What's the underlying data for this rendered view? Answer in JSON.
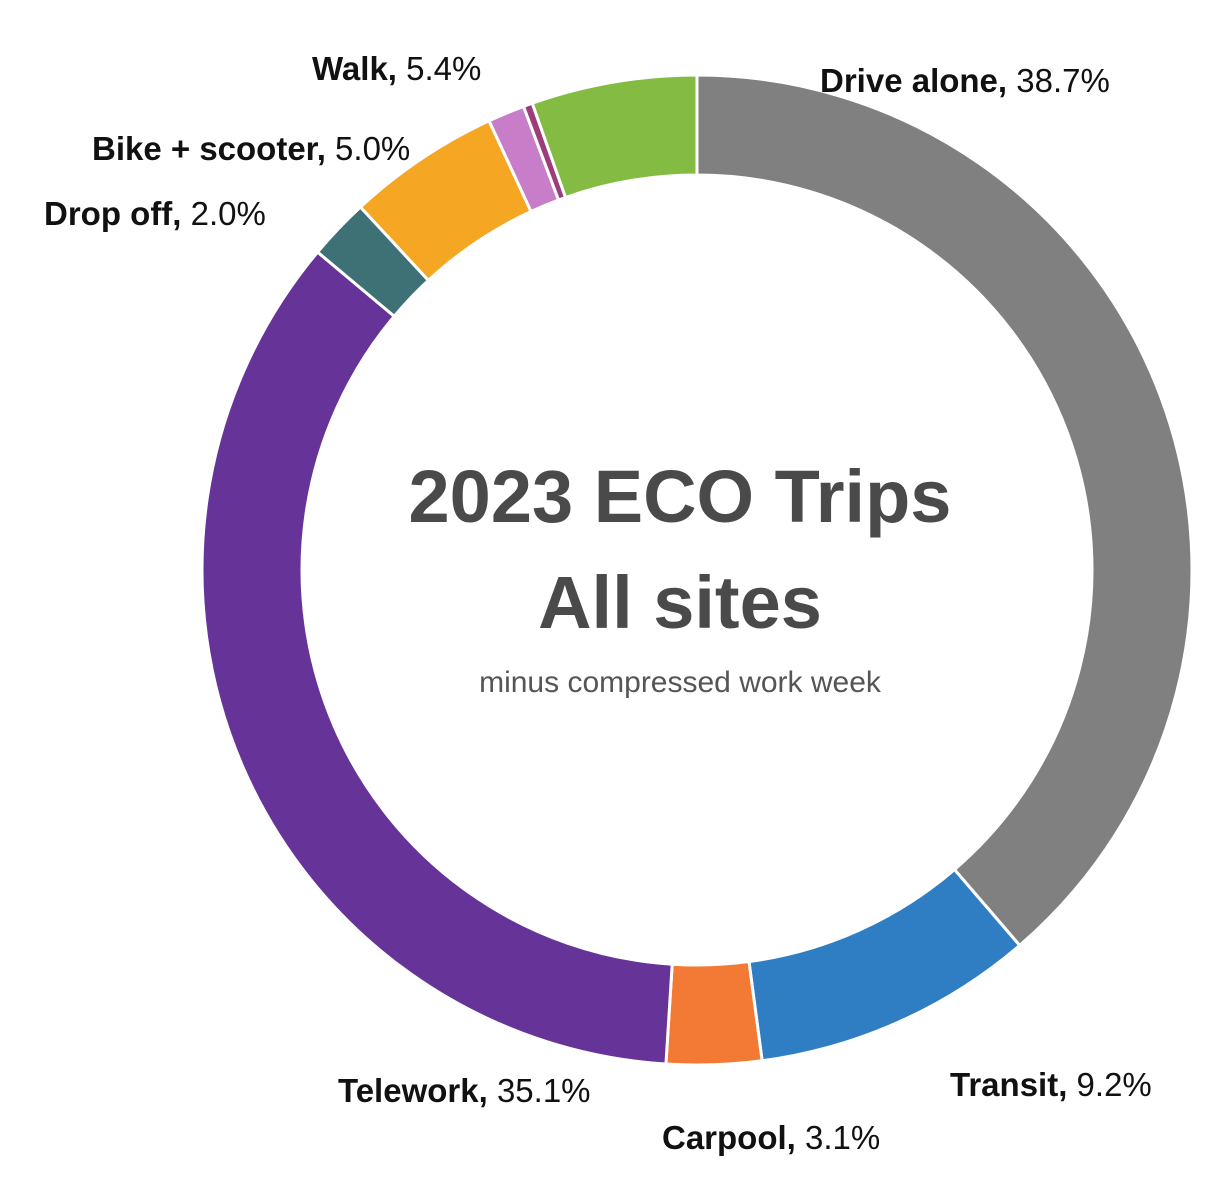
{
  "chart_data": {
    "type": "pie",
    "style": "donut",
    "title": "2023 ECO Trips",
    "title_line2": "All sites",
    "subtitle": "minus compressed work week",
    "slices": [
      {
        "label": "Drive alone",
        "value": 38.7,
        "value_text": "38.7%",
        "color": "#808080"
      },
      {
        "label": "Transit",
        "value": 9.2,
        "value_text": "9.2%",
        "color": "#2f7ec4"
      },
      {
        "label": "Carpool",
        "value": 3.1,
        "value_text": "3.1%",
        "color": "#f27a35"
      },
      {
        "label": "Telework",
        "value": 35.1,
        "value_text": "35.1%",
        "color": "#663399"
      },
      {
        "label": "Drop off",
        "value": 2.0,
        "value_text": "2.0%",
        "color": "#3e7176"
      },
      {
        "label": "Bike + scooter",
        "value": 5.0,
        "value_text": "5.0%",
        "color": "#f5a623"
      },
      {
        "label": "",
        "value": 1.2,
        "value_text": "",
        "color": "#c77dc7"
      },
      {
        "label": "",
        "value": 0.3,
        "value_text": "",
        "color": "#9b3d7a"
      },
      {
        "label": "Walk",
        "value": 5.4,
        "value_text": "5.4%",
        "color": "#84bb42"
      }
    ]
  }
}
